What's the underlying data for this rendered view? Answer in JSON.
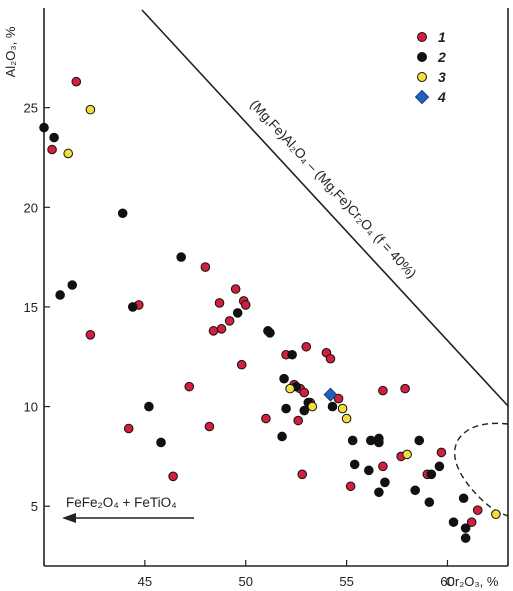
{
  "chart_data": {
    "type": "scatter",
    "xlabel": "Cr₂O₃, %",
    "ylabel": "Al₂O₃, %",
    "xlim": [
      40,
      63
    ],
    "ylim": [
      2,
      30
    ],
    "x_ticks": [
      45,
      50,
      55,
      60
    ],
    "y_ticks": [
      5,
      10,
      15,
      20,
      25
    ],
    "legend_position": "top-right",
    "legend": [
      {
        "label": "1",
        "color": "#d21f3c",
        "marker": "circle"
      },
      {
        "label": "2",
        "color": "#111111",
        "marker": "circle"
      },
      {
        "label": "3",
        "color": "#f2e03a",
        "marker": "circle"
      },
      {
        "label": "4",
        "color": "#1f5fbf",
        "marker": "diamond"
      }
    ],
    "series": [
      {
        "name": "1",
        "points": [
          [
            41.6,
            26.3
          ],
          [
            40.4,
            22.9
          ],
          [
            42.3,
            13.6
          ],
          [
            44.7,
            15.1
          ],
          [
            44.2,
            8.9
          ],
          [
            46.4,
            6.5
          ],
          [
            47.2,
            11.0
          ],
          [
            48.0,
            17.0
          ],
          [
            48.4,
            13.8
          ],
          [
            48.7,
            15.2
          ],
          [
            48.8,
            13.9
          ],
          [
            49.2,
            14.3
          ],
          [
            49.5,
            15.9
          ],
          [
            49.8,
            12.1
          ],
          [
            49.9,
            15.3
          ],
          [
            50.0,
            15.1
          ],
          [
            48.2,
            9.0
          ],
          [
            51.0,
            9.4
          ],
          [
            52.0,
            12.6
          ],
          [
            52.4,
            11.1
          ],
          [
            52.7,
            10.9
          ],
          [
            52.9,
            10.7
          ],
          [
            53.0,
            13.0
          ],
          [
            52.6,
            9.3
          ],
          [
            52.8,
            6.6
          ],
          [
            53.2,
            10.2
          ],
          [
            54.0,
            12.7
          ],
          [
            54.2,
            12.4
          ],
          [
            54.6,
            10.4
          ],
          [
            56.8,
            10.8
          ],
          [
            57.7,
            7.5
          ],
          [
            57.9,
            10.9
          ],
          [
            56.8,
            7.0
          ],
          [
            55.2,
            6.0
          ],
          [
            59.7,
            7.7
          ],
          [
            61.2,
            4.2
          ],
          [
            61.5,
            4.8
          ],
          [
            59.0,
            6.6
          ]
        ]
      },
      {
        "name": "2",
        "points": [
          [
            40.0,
            24.0
          ],
          [
            40.5,
            23.5
          ],
          [
            40.8,
            15.6
          ],
          [
            41.4,
            16.1
          ],
          [
            43.9,
            19.7
          ],
          [
            44.4,
            15.0
          ],
          [
            45.2,
            10.0
          ],
          [
            45.8,
            8.2
          ],
          [
            46.8,
            17.5
          ],
          [
            49.6,
            14.7
          ],
          [
            51.1,
            13.8
          ],
          [
            51.2,
            13.7
          ],
          [
            51.9,
            11.4
          ],
          [
            52.0,
            9.9
          ],
          [
            52.3,
            12.6
          ],
          [
            52.5,
            11.0
          ],
          [
            51.8,
            8.5
          ],
          [
            52.9,
            9.8
          ],
          [
            53.1,
            10.2
          ],
          [
            54.3,
            10.0
          ],
          [
            55.3,
            8.3
          ],
          [
            55.4,
            7.1
          ],
          [
            56.2,
            8.3
          ],
          [
            56.6,
            8.4
          ],
          [
            56.6,
            8.2
          ],
          [
            56.1,
            6.8
          ],
          [
            56.6,
            5.7
          ],
          [
            56.9,
            6.2
          ],
          [
            58.4,
            5.8
          ],
          [
            59.1,
            5.2
          ],
          [
            59.2,
            6.6
          ],
          [
            59.6,
            7.0
          ],
          [
            60.3,
            4.2
          ],
          [
            60.8,
            5.4
          ],
          [
            60.9,
            3.9
          ],
          [
            60.9,
            3.4
          ],
          [
            58.6,
            8.3
          ]
        ]
      },
      {
        "name": "3",
        "points": [
          [
            42.3,
            24.9
          ],
          [
            41.2,
            22.7
          ],
          [
            52.2,
            10.9
          ],
          [
            53.3,
            10.0
          ],
          [
            54.8,
            9.9
          ],
          [
            55.0,
            9.4
          ],
          [
            58.0,
            7.6
          ],
          [
            62.4,
            4.6
          ]
        ]
      },
      {
        "name": "4",
        "points": [
          [
            54.2,
            10.6
          ]
        ]
      }
    ],
    "annotations": [
      {
        "text": "(Mg,Fe)Al₂O₄ – (Mg,Fe)Cr₂O₄   (f = 40%)"
      },
      {
        "text": "FeFe₂O₄ + FeTiO₄"
      }
    ]
  }
}
